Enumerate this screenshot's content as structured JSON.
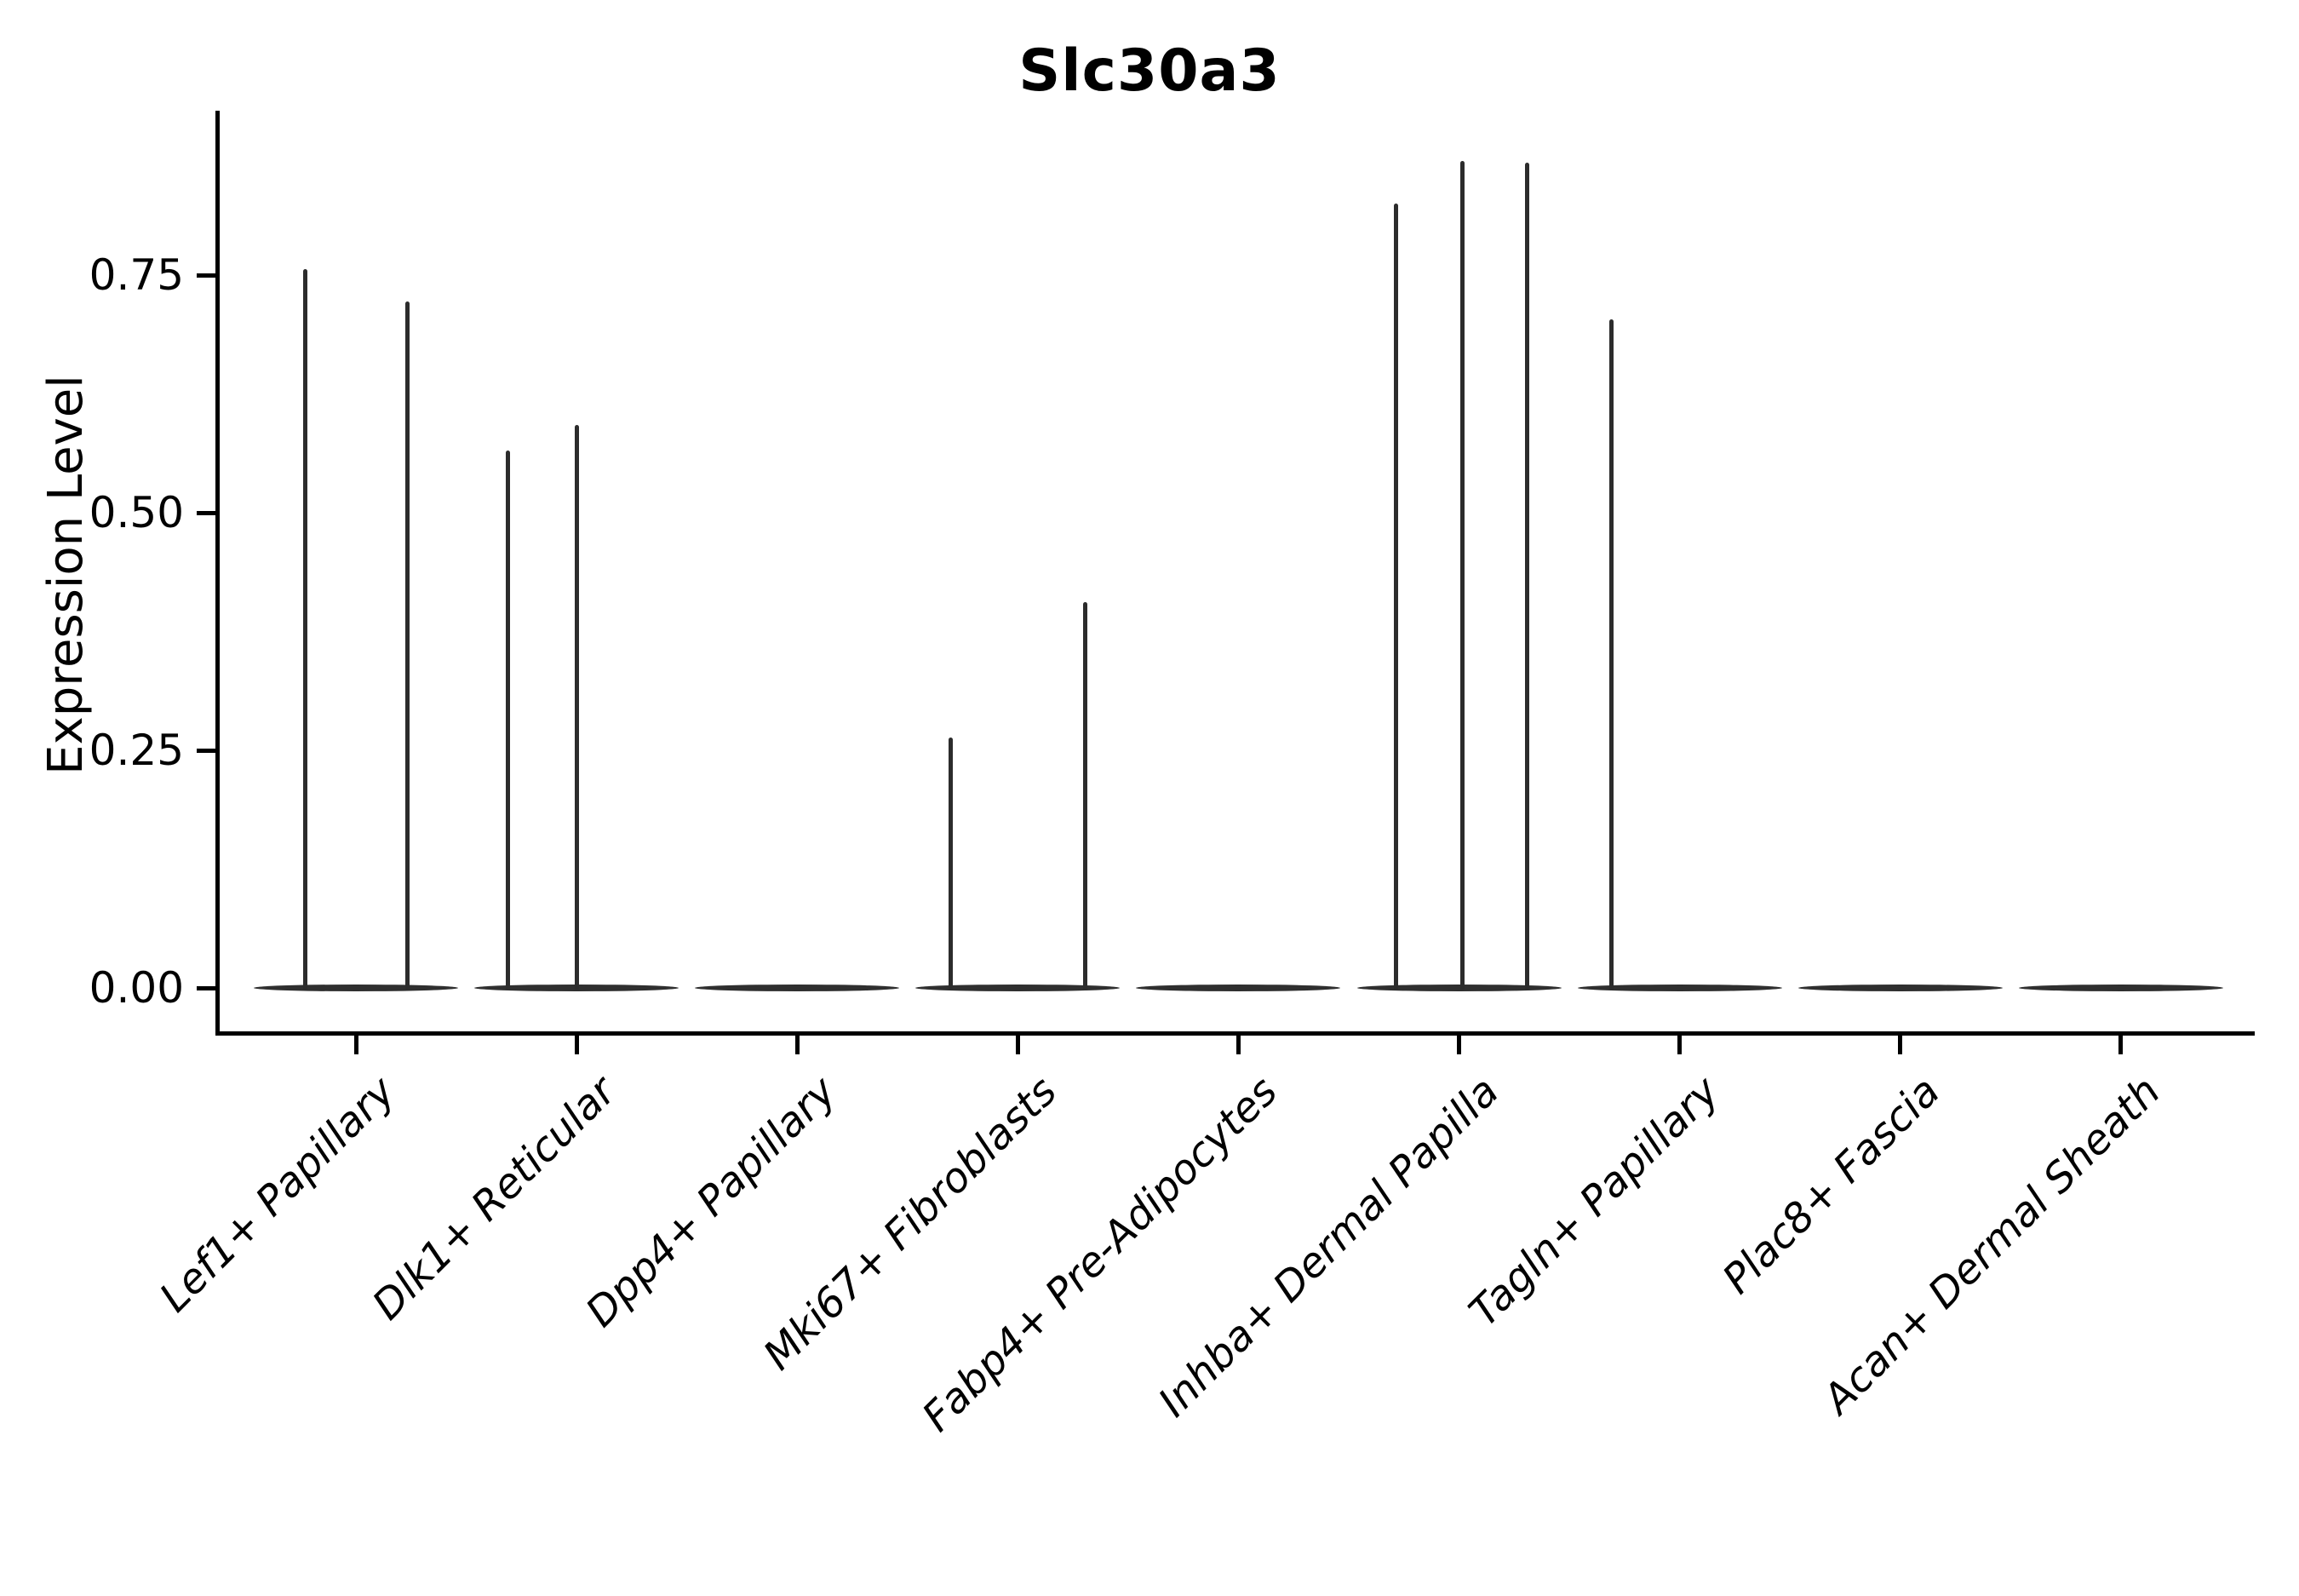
{
  "title": "Slc30a3",
  "y_axis": {
    "label": "Expression Level",
    "tick_labels": [
      "0.00",
      "0.25",
      "0.50",
      "0.75"
    ]
  },
  "chart_data": {
    "type": "violin",
    "title": "Slc30a3",
    "xlabel": "",
    "ylabel": "Expression Level",
    "ylim": [
      0,
      0.92
    ],
    "yticks": [
      0,
      0.25,
      0.5,
      0.75
    ],
    "ytick_labels": [
      "0.00",
      "0.25",
      "0.50",
      "0.75"
    ],
    "grid": false,
    "legend": "none",
    "categories": [
      "Lef1+ Papillary",
      "Dlk1+ Reticular",
      "Dpp4+ Papillary",
      "Mki67+ Fibroblasts",
      "Fabp4+ Pre-Adipocytes",
      "Inhba+ Dermal Papilla",
      "Tagln+ Papillary",
      "Plac8+ Fascia",
      "Acan+ Dermal Sheath"
    ],
    "groups": [
      {
        "category": "Lef1+ Papillary",
        "violins": [
          {
            "pos": 0.25,
            "max": 0.756
          },
          {
            "pos": 0.75,
            "max": 0.722
          }
        ]
      },
      {
        "category": "Dlk1+ Reticular",
        "violins": [
          {
            "pos": 0.165,
            "max": 0.565
          },
          {
            "pos": 0.5,
            "max": 0.592
          }
        ]
      },
      {
        "category": "Dpp4+ Papillary",
        "violins": []
      },
      {
        "category": "Mki67+ Fibroblasts",
        "violins": [
          {
            "pos": 0.17,
            "max": 0.263
          },
          {
            "pos": 0.83,
            "max": 0.406
          }
        ]
      },
      {
        "category": "Fabp4+ Pre-Adipocytes",
        "violins": []
      },
      {
        "category": "Inhba+ Dermal Papilla",
        "violins": [
          {
            "pos": 0.19,
            "max": 0.825
          },
          {
            "pos": 0.515,
            "max": 0.87
          },
          {
            "pos": 0.835,
            "max": 0.868
          }
        ]
      },
      {
        "category": "Tagln+ Papillary",
        "violins": [
          {
            "pos": 0.165,
            "max": 0.703
          }
        ]
      },
      {
        "category": "Plac8+ Fascia",
        "violins": []
      },
      {
        "category": "Acan+ Dermal Sheath",
        "violins": []
      }
    ],
    "colors": {
      "violin_stroke": "#2c2c2c",
      "axis": "#000000",
      "text": "#000000",
      "background": "#ffffff"
    }
  }
}
